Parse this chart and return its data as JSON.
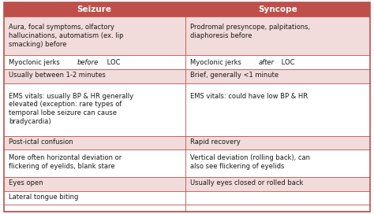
{
  "header": [
    "Seizure",
    "Syncope"
  ],
  "header_bg": "#bf4f4b",
  "header_text_color": "#ffffff",
  "row_bg_odd": "#f2dcdb",
  "row_bg_even": "#ffffff",
  "border_color": "#bf4f4b",
  "text_color": "#1a1a1a",
  "col_split": 0.495,
  "rows": [
    {
      "seizure": [
        [
          "Aura, focal symptoms, olfactory\nhallucinations, automatism (ex. lip\nsmacking) before",
          false
        ]
      ],
      "syncope": [
        [
          "Prodromal presyncope, palpitations,\ndiaphoresis before",
          false
        ]
      ]
    },
    {
      "seizure": [
        [
          "Myoclonic jerks ",
          false
        ],
        [
          "before",
          true
        ],
        [
          " LOC",
          false
        ]
      ],
      "syncope": [
        [
          "Myoclonic jerks ",
          false
        ],
        [
          "after",
          true
        ],
        [
          " LOC",
          false
        ]
      ]
    },
    {
      "seizure": [
        [
          "Usually between 1-2 minutes",
          false
        ]
      ],
      "syncope": [
        [
          "Brief, generally <1 minute",
          false
        ]
      ]
    },
    {
      "seizure": [
        [
          "EMS vitals: usually BP & HR generally\nelevated (exception: rare types of\ntemporal lobe seizure can cause\nbradycardia)",
          false
        ]
      ],
      "syncope": [
        [
          "EMS vitals: could have low BP & HR",
          false
        ]
      ]
    },
    {
      "seizure": [
        [
          "Post-ictal confusion",
          false
        ]
      ],
      "syncope": [
        [
          "Rapid recovery",
          false
        ]
      ]
    },
    {
      "seizure": [
        [
          "More often horizontal deviation or\nflickering of eyelids, blank stare",
          false
        ]
      ],
      "syncope": [
        [
          "Vertical deviation (rolling back), can\nalso see flickering of eyelids",
          false
        ]
      ]
    },
    {
      "seizure": [
        [
          "Eyes open",
          false
        ]
      ],
      "syncope": [
        [
          "Usually eyes closed or rolled back",
          false
        ]
      ]
    },
    {
      "seizure": [
        [
          "Lateral tongue biting",
          false
        ]
      ],
      "syncope": [
        [
          "",
          false
        ]
      ]
    }
  ],
  "row_heights_raw": [
    1.05,
    2.8,
    1.0,
    1.0,
    3.8,
    1.0,
    2.0,
    1.0,
    1.0,
    0.5
  ],
  "figsize": [
    4.74,
    2.72
  ],
  "dpi": 100,
  "fontsize": 6.0,
  "header_fontsize": 7.5
}
